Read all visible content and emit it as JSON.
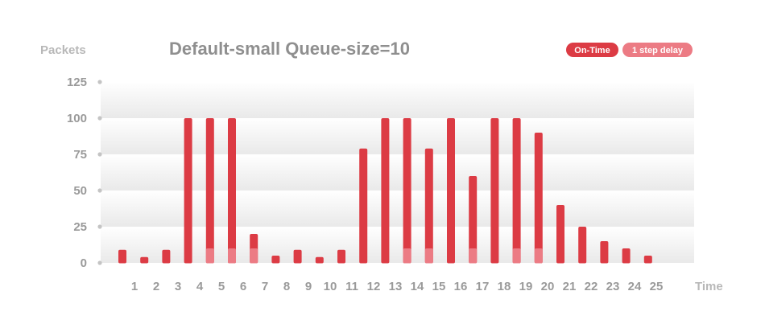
{
  "chart_data": {
    "type": "bar",
    "title": "Default-small Queue-size=10",
    "ylabel": "Packets",
    "xlabel": "Time",
    "ylim": [
      0,
      125
    ],
    "yticks": [
      0,
      25,
      50,
      75,
      100,
      125
    ],
    "categories": [
      "1",
      "2",
      "3",
      "4",
      "5",
      "6",
      "7",
      "8",
      "9",
      "10",
      "11",
      "12",
      "13",
      "14",
      "15",
      "16",
      "17",
      "18",
      "19",
      "20",
      "21",
      "22",
      "23",
      "24",
      "25"
    ],
    "grid": true,
    "legend_position": "top-right",
    "series": [
      {
        "name": "On-Time",
        "color": "#dc3b44",
        "values": [
          9,
          4,
          9,
          100,
          100,
          100,
          20,
          5,
          9,
          4,
          9,
          79,
          100,
          100,
          79,
          100,
          60,
          100,
          100,
          90,
          40,
          25,
          15,
          10,
          5
        ]
      },
      {
        "name": "1 step delay",
        "color": "#ec7b84",
        "values": [
          0,
          0,
          0,
          0,
          10,
          10,
          10,
          0,
          0,
          0,
          0,
          0,
          0,
          10,
          10,
          0,
          10,
          0,
          10,
          10,
          0,
          0,
          0,
          0,
          0
        ]
      }
    ]
  }
}
